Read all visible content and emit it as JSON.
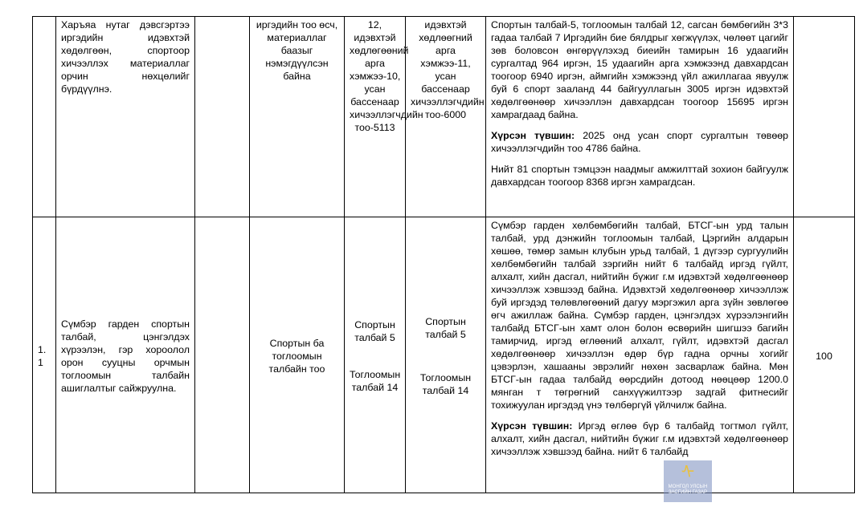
{
  "rows": [
    {
      "num": "",
      "objective": "Харъяа нутаг дэвсгэртээ иргэдийн идэвхтэй хөдөлгөөн, спортоор хичээллэх материаллаг орчин нөхцөлийг бүрдүүлнэ.",
      "col3": "",
      "indicator": "иргэдийн тоо өсч, материаллаг баазыг нэмэгдүүлсэн байна",
      "baseline": "12, идэвхтэй хөдлөгөөний арга хэмжээ-10, усан бассенаар хичээллэгчдийн тоо-5113",
      "target": "идэвхтэй хөдлөөгний арга хэмжээ-11, усан бассенаар хичээллэгчдийн тоо-6000",
      "report_p1": "Спортын талбай-5, тоглоомын талбай 12, сагсан бөмбөгийн 3*3 гадаа талбай 7 Иргэдийн бие бялдрыг хөгжүүлэх, чөлөөт цагийг зөв боловсон өнгөрүүлэхэд биеийн тамирын 16 удаагийн сургалтад 964 иргэн, 15 удаагийн арга хэмжээнд давхардсан тоогоор 6940 иргэн, аймгийн хэмжээнд үйл ажиллагаа явуулж буй 6 спорт зааланд 44 байгууллагын  3005 иргэн идэвхтэй хөдөлгөөнөөр хичээллэн давхардсан тоогоор 15695 иргэн хамрагдаад байна.",
      "report_level_label": "Хүрсэн түвшин:",
      "report_level_text": " 2025 онд  усан спорт сургалтын төвөөр хичээллэгчдийн тоо 4786 байна.",
      "report_p3": "Нийт 81 спортын тэмцээн наадмыг амжилттай зохион байгуулж давхардсан тоогоор 8368 иргэн хамрагдсан.",
      "score": ""
    },
    {
      "num": "1.1",
      "objective": "Сүмбэр гарден спортын талбай, цэнгэлдэх хүрээлэн, гэр хороолол орон сууцны орчмын тоглоомын талбайн ашиглалтыг сайжруулна.",
      "col3": "",
      "indicator": "Спортын ба тоглоомын талбайн тоо",
      "baseline_a": "Спортын талбай 5",
      "baseline_b": "Тоглоомын талбай 14",
      "target_a": "Спортын талбай 5",
      "target_b": "Тоглоомын талбай 14",
      "report_p1": "Сүмбэр гарден хөлбөмбөгийн талбай, БТСГ-ын урд талын талбай, урд дэнжийн тоглоомын талбай, Цэргийн алдарын хөшөө, төмөр замын клубын урьд талбай, 1 дүгээр сургуулийн хөлбөмбөгийн талбай зэргийн нийт  6 талбайд иргэд гүйлт, алхалт, хийн дасгал, нийтийн бүжиг г.м идэвхтэй хөдөлгөөнөөр хичээллэж хэвшээд байна. Идэвхтэй хөдөлгөөнөөр хичээллэж буй иргэдэд төлөвлөгөөний дагуу мэргэжил арга зүйн зөвлөгөө өгч ажиллаж байна. Сүмбэр гарден, цэнгэлдэх хүрээлэнгийн талбайд БТСГ-ын хамт олон болон өсвөрийн шигшээ багийн тамирчид, иргэд өглөөний алхалт, гүйлт, идэвхтэй дасгал хөдөлгөөнөөр хичээллэн өдөр бүр гадна орчны хогийг цэвэрлэн, хашааны эврэлийг нөхөн засварлаж байна. Мөн БТСГ-ын гадаа талбайд өөрсдийн дотоод нөөцөөр 1200.0 мянган т төгрөгний санхүүжилтээр задгай фитнесийг тохижуулан иргэдэд үнэ төлбөргүй үйлчилж байна.",
      "report_level_label": "Хүрсэн түвшин:",
      "report_level_text": " Иргэд өглөө бүр 6 талбайд тогтмол гүйлт, алхалт, хийн дасгал, нийтийн бүжиг г.м идэвхтэй хөдөлгөөнөөр хичээллэж хэвшээд байна. нийт 6 талбайд",
      "score": "100"
    }
  ],
  "watermark": {
    "line1": "МОНГОЛ УЛСЫН",
    "line2": "ЗАСГИЙН ГАЗАР",
    "icon": "soyombo-emblem-icon"
  }
}
